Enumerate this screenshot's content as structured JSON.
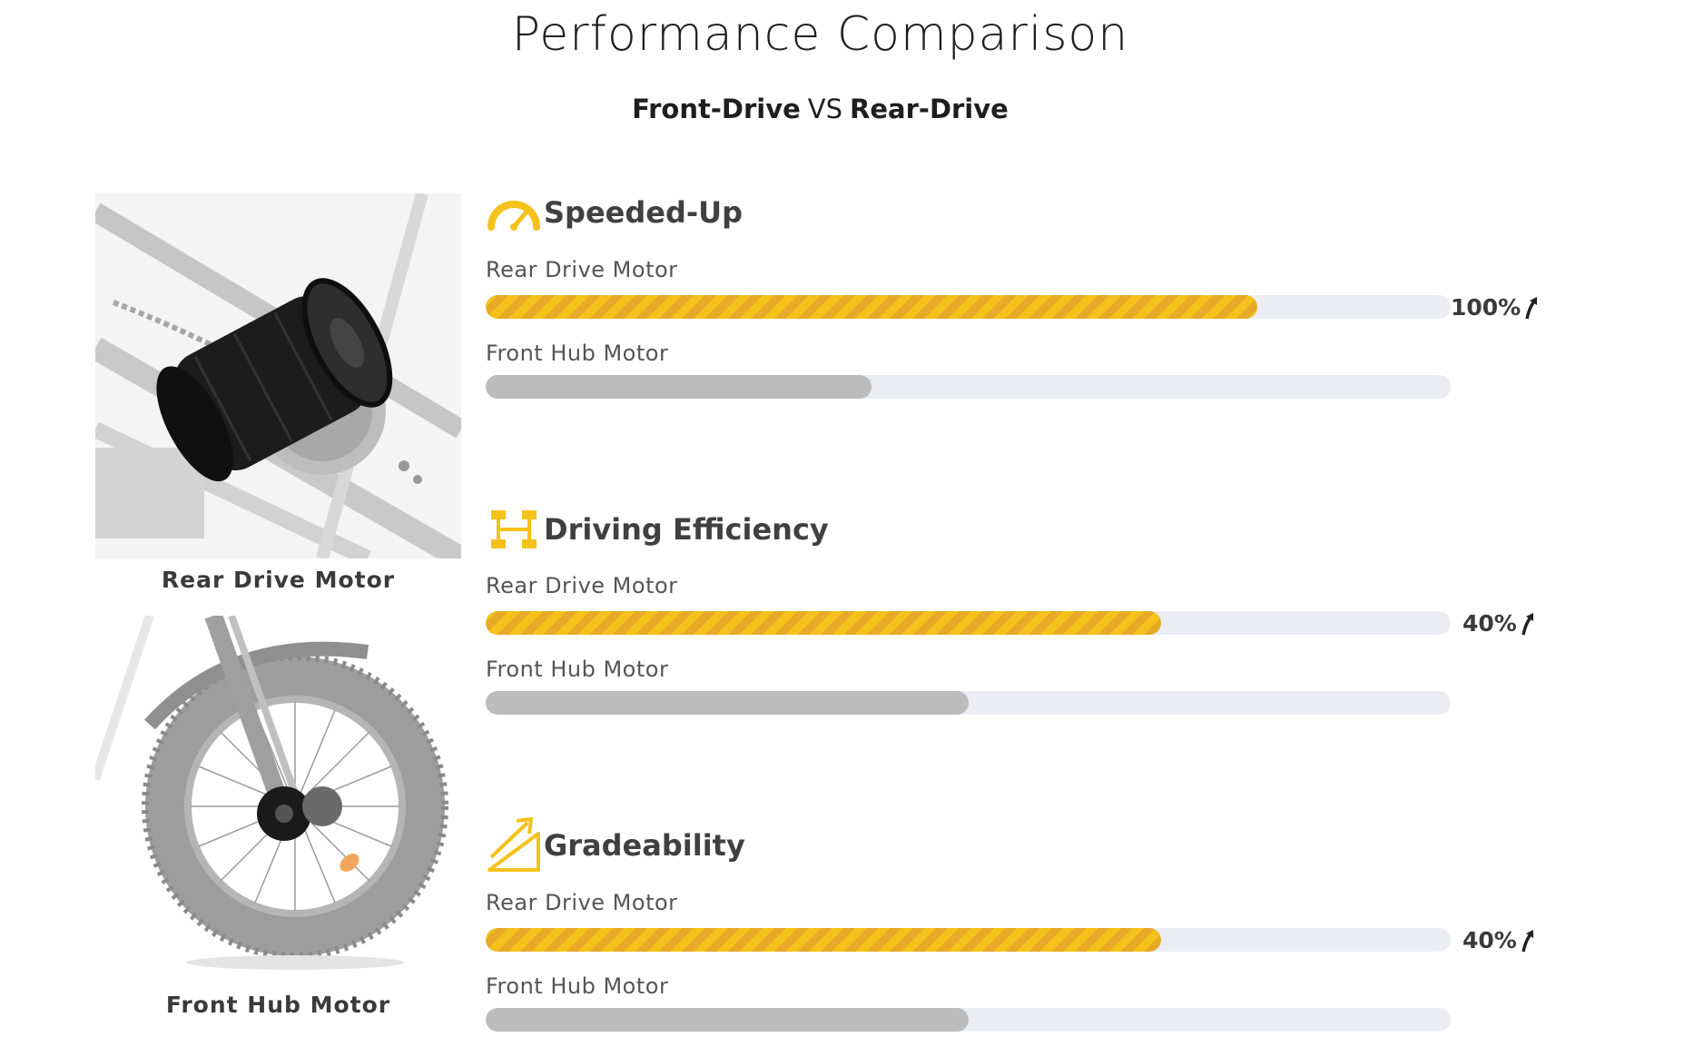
{
  "header": {
    "title": "Performance Comparison",
    "subtitle_left": "Front-Drive",
    "subtitle_vs": "VS",
    "subtitle_right": "Rear-Drive"
  },
  "images": [
    {
      "caption": "Rear Drive Motor",
      "icon": "rear-motor-image"
    },
    {
      "caption": "Front Hub Motor",
      "icon": "front-hub-wheel-image"
    }
  ],
  "sections": [
    {
      "title": "Speeded-Up",
      "icon": "speedometer-icon",
      "rear_label": "Rear Drive Motor",
      "front_label": "Front Hub Motor",
      "rear_value": 0.8,
      "front_value": 0.4,
      "percent": "100%"
    },
    {
      "title": "Driving Efficiency",
      "icon": "axle-icon",
      "rear_label": "Rear Drive Motor",
      "front_label": "Front Hub Motor",
      "rear_value": 0.7,
      "front_value": 0.5,
      "percent": "40%"
    },
    {
      "title": "Gradeability",
      "icon": "incline-icon",
      "rear_label": "Rear Drive Motor",
      "front_label": "Front Hub Motor",
      "rear_value": 0.7,
      "front_value": 0.5,
      "percent": "40%"
    }
  ],
  "colors": {
    "accent": "#f5c21b",
    "accent_dark": "#e7a926",
    "track": "#ebedf3",
    "front_fill": "#bcbcbc"
  }
}
